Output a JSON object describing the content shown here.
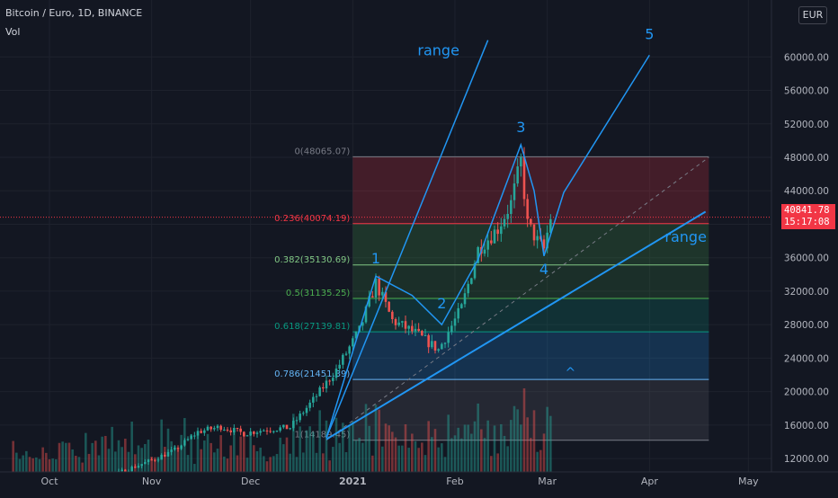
{
  "header": {
    "symbol": "Bitcoin / Euro, 1D, BINANCE",
    "indicator": "Vol",
    "currency": "EUR"
  },
  "price_tag": {
    "value": "40841.78",
    "countdown": "15:17:08"
  },
  "annotations": {
    "waves": [
      "1",
      "2",
      "3",
      "4",
      "5"
    ],
    "range_upper": "range",
    "range_lower": "range",
    "caret": "^"
  },
  "fib_levels": [
    {
      "ratio": "0",
      "price": 48065.07,
      "label": "0(48065.07)",
      "color": "#787b86"
    },
    {
      "ratio": "0.236",
      "price": 40074.19,
      "label": "0.236(40074.19)",
      "color": "#f23645"
    },
    {
      "ratio": "0.382",
      "price": 35130.69,
      "label": "0.382(35130.69)",
      "color": "#81c784"
    },
    {
      "ratio": "0.5",
      "price": 31135.25,
      "label": "0.5(31135.25)",
      "color": "#4caf50"
    },
    {
      "ratio": "0.618",
      "price": 27139.81,
      "label": "0.618(27139.81)",
      "color": "#089981"
    },
    {
      "ratio": "0.786",
      "price": 21451.39,
      "label": "0.786(21451.39)",
      "color": "#64b5f6"
    },
    {
      "ratio": "1",
      "price": 14189.45,
      "label": "1(14189.45)",
      "color": "#787b86"
    }
  ],
  "chart_data": {
    "type": "candlestick",
    "title": "Bitcoin / Euro, 1D, BINANCE",
    "y_axis": {
      "ticks": [
        12000,
        16000,
        20000,
        24000,
        28000,
        32000,
        36000,
        40000,
        44000,
        48000,
        52000,
        56000,
        60000
      ],
      "tick_labels": [
        "12000.00",
        "16000.00",
        "20000.00",
        "24000.00",
        "28000.00",
        "32000.00",
        "36000.00",
        "40000.00",
        "44000.00",
        "48000.00",
        "52000.00",
        "56000.00",
        "60000.00"
      ],
      "range": [
        10400,
        66800
      ],
      "grid": true
    },
    "x_axis": {
      "labels": [
        "Oct",
        "Nov",
        "Dec",
        "2021",
        "Feb",
        "Mar",
        "Apr",
        "May"
      ],
      "label_dates": [
        "2020-10-01",
        "2020-11-01",
        "2020-12-01",
        "2021-01-01",
        "2021-02-01",
        "2021-03-01",
        "2021-04-01",
        "2021-05-01"
      ],
      "range": [
        "2020-09-16",
        "2021-05-08"
      ]
    },
    "weekly_closes": [
      {
        "date": "2020-09-20",
        "close": 9200
      },
      {
        "date": "2020-10-04",
        "close": 9100
      },
      {
        "date": "2020-10-18",
        "close": 9700
      },
      {
        "date": "2020-11-01",
        "close": 11800
      },
      {
        "date": "2020-11-08",
        "close": 13000
      },
      {
        "date": "2020-11-15",
        "close": 15200
      },
      {
        "date": "2020-11-22",
        "close": 15800
      },
      {
        "date": "2020-11-29",
        "close": 15000
      },
      {
        "date": "2020-12-06",
        "close": 15500
      },
      {
        "date": "2020-12-13",
        "close": 15700
      },
      {
        "date": "2020-12-20",
        "close": 19000
      },
      {
        "date": "2020-12-27",
        "close": 22600
      },
      {
        "date": "2021-01-03",
        "close": 27300
      },
      {
        "date": "2021-01-08",
        "close": 33000
      },
      {
        "date": "2021-01-13",
        "close": 28500
      },
      {
        "date": "2021-01-20",
        "close": 27000
      },
      {
        "date": "2021-01-27",
        "close": 25000
      },
      {
        "date": "2021-02-03",
        "close": 30000
      },
      {
        "date": "2021-02-08",
        "close": 37000
      },
      {
        "date": "2021-02-14",
        "close": 39500
      },
      {
        "date": "2021-02-18",
        "close": 42500
      },
      {
        "date": "2021-02-21",
        "close": 47500
      },
      {
        "date": "2021-02-23",
        "close": 40000
      },
      {
        "date": "2021-02-26",
        "close": 38000
      },
      {
        "date": "2021-02-28",
        "close": 37000
      },
      {
        "date": "2021-03-02",
        "close": 40842
      }
    ],
    "series": [
      {
        "name": "Vol",
        "type": "histogram"
      }
    ],
    "wave_path": [
      {
        "label": "",
        "date": "2020-12-24",
        "price": 14500
      },
      {
        "label": "1",
        "date": "2021-01-08",
        "price": 33800
      },
      {
        "label": "",
        "date": "2021-01-19",
        "price": 31500
      },
      {
        "label": "2",
        "date": "2021-01-28",
        "price": 28000
      },
      {
        "label": "",
        "date": "2021-02-08",
        "price": 35800
      },
      {
        "label": "3",
        "date": "2021-02-21",
        "price": 49500
      },
      {
        "label": "",
        "date": "2021-02-25",
        "price": 44000
      },
      {
        "label": "4",
        "date": "2021-02-28",
        "price": 36200
      },
      {
        "label": "",
        "date": "2021-03-06",
        "price": 43800
      },
      {
        "label": "5",
        "date": "2021-04-01",
        "price": 60200
      }
    ],
    "range_upper_line": [
      {
        "date": "2020-12-24",
        "price": 14500
      },
      {
        "date": "2021-02-11",
        "price": 62000
      }
    ],
    "range_lower_line": [
      {
        "date": "2020-12-24",
        "price": 14300
      },
      {
        "date": "2021-04-18",
        "price": 41500
      }
    ],
    "dashed_trend": [
      {
        "date": "2020-12-24",
        "price": 14200
      },
      {
        "date": "2021-04-19",
        "price": 48000
      }
    ],
    "fib_box_dates": [
      "2021-01-01",
      "2021-04-19"
    ],
    "last_price": 40841.78,
    "colors": {
      "up": "#26a69a",
      "down": "#ef5350",
      "annotation": "#2196f3"
    }
  }
}
